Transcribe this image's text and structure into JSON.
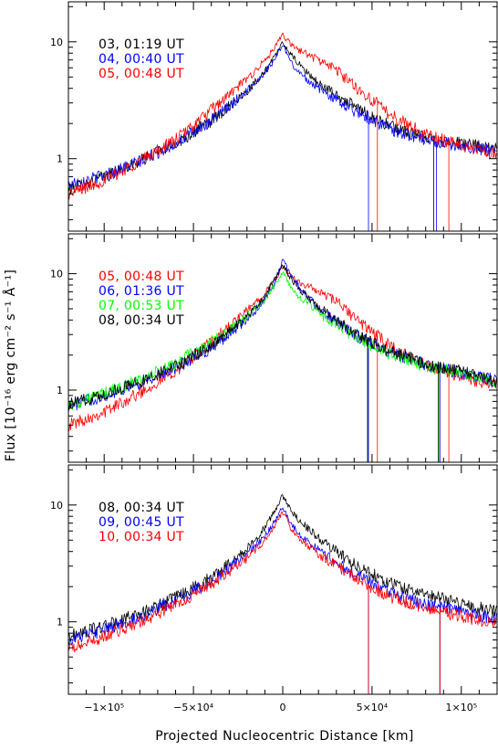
{
  "figure": {
    "ylabel_text": "Flux [10⁻¹⁶ erg cm⁻² s⁻¹ Å⁻¹]",
    "xlabel": "Projected Nucleocentric Distance [km]"
  },
  "chart_data": [
    {
      "type": "line",
      "yscale": "log",
      "xlim": [
        -120000,
        120000
      ],
      "ylim": [
        0.24,
        22
      ],
      "ytick_labels": [
        {
          "value": 1,
          "label": "1"
        },
        {
          "value": 10,
          "label": "10"
        }
      ],
      "legend": {
        "position": "top-left"
      },
      "series": [
        {
          "name": "03, 01:19 UT",
          "color": "#000000",
          "x": [
            -120000,
            -100000,
            -80000,
            -60000,
            -40000,
            -20000,
            -10000,
            -5000,
            0,
            5000,
            10000,
            20000,
            40000,
            60000,
            80000,
            100000,
            120000
          ],
          "y": [
            0.55,
            0.7,
            0.95,
            1.35,
            2.1,
            3.8,
            5.6,
            7.2,
            9.8,
            7.6,
            6.2,
            4.4,
            2.8,
            1.9,
            1.5,
            1.35,
            1.2
          ],
          "dips": [
            84500
          ]
        },
        {
          "name": "04, 00:40 UT",
          "color": "#0000ff",
          "x": [
            -120000,
            -100000,
            -80000,
            -60000,
            -40000,
            -20000,
            -10000,
            -5000,
            0,
            5000,
            10000,
            20000,
            40000,
            60000,
            80000,
            100000,
            120000
          ],
          "y": [
            0.6,
            0.72,
            0.95,
            1.35,
            2.1,
            3.8,
            5.5,
            6.9,
            9.5,
            6.5,
            5.3,
            4.0,
            2.6,
            1.8,
            1.45,
            1.3,
            1.15
          ],
          "dips": [
            48000,
            86000
          ]
        },
        {
          "name": "05, 00:48 UT",
          "color": "#ff0000",
          "x": [
            -120000,
            -100000,
            -80000,
            -60000,
            -40000,
            -20000,
            -10000,
            -5000,
            0,
            5000,
            10000,
            20000,
            30000,
            40000,
            60000,
            80000,
            100000,
            120000
          ],
          "y": [
            0.5,
            0.65,
            0.95,
            1.45,
            2.6,
            4.8,
            6.9,
            8.6,
            11.5,
            9.3,
            8.4,
            7.0,
            5.8,
            4.2,
            2.4,
            1.6,
            1.3,
            1.1
          ],
          "dips": [
            53000,
            93000
          ]
        }
      ]
    },
    {
      "type": "line",
      "yscale": "log",
      "xlim": [
        -120000,
        120000
      ],
      "ylim": [
        0.24,
        22
      ],
      "ytick_labels": [
        {
          "value": 1,
          "label": "1"
        },
        {
          "value": 10,
          "label": "10"
        }
      ],
      "legend": {
        "position": "top-left"
      },
      "series": [
        {
          "name": "05, 00:48 UT",
          "color": "#ff0000",
          "x": [
            -120000,
            -100000,
            -80000,
            -60000,
            -40000,
            -20000,
            -10000,
            -5000,
            0,
            5000,
            10000,
            20000,
            30000,
            40000,
            60000,
            80000,
            100000,
            120000
          ],
          "y": [
            0.5,
            0.65,
            0.95,
            1.45,
            2.6,
            4.8,
            6.9,
            8.6,
            11.5,
            9.3,
            8.4,
            7.0,
            5.8,
            4.2,
            2.4,
            1.6,
            1.3,
            1.1
          ],
          "dips": [
            53000,
            93000
          ]
        },
        {
          "name": "06, 01:36 UT",
          "color": "#0000ff",
          "x": [
            -120000,
            -100000,
            -80000,
            -60000,
            -40000,
            -20000,
            -10000,
            -5000,
            0,
            5000,
            10000,
            20000,
            40000,
            60000,
            80000,
            100000,
            120000
          ],
          "y": [
            0.72,
            0.9,
            1.15,
            1.55,
            2.3,
            4.0,
            6.0,
            8.0,
            13.0,
            9.5,
            7.5,
            5.0,
            3.0,
            2.1,
            1.65,
            1.4,
            1.2
          ],
          "dips": [
            48000,
            88000
          ]
        },
        {
          "name": "07, 00:53 UT",
          "color": "#00ff00",
          "x": [
            -120000,
            -100000,
            -80000,
            -60000,
            -40000,
            -20000,
            -10000,
            -5000,
            0,
            5000,
            10000,
            20000,
            40000,
            60000,
            80000,
            100000,
            120000
          ],
          "y": [
            0.74,
            0.93,
            1.22,
            1.7,
            2.6,
            4.3,
            6.0,
            7.8,
            10.2,
            7.5,
            6.2,
            4.6,
            2.9,
            2.05,
            1.62,
            1.38,
            1.18
          ],
          "dips": [
            47500,
            87500
          ]
        },
        {
          "name": "08, 00:34 UT",
          "color": "#000000",
          "x": [
            -120000,
            -100000,
            -80000,
            -60000,
            -40000,
            -20000,
            -10000,
            -5000,
            0,
            5000,
            10000,
            20000,
            40000,
            60000,
            80000,
            100000,
            120000
          ],
          "y": [
            0.75,
            0.92,
            1.18,
            1.6,
            2.4,
            4.2,
            6.4,
            8.6,
            12.0,
            8.8,
            7.2,
            5.2,
            3.1,
            2.15,
            1.7,
            1.45,
            1.2
          ],
          "dips": [
            47500,
            87000
          ]
        }
      ]
    },
    {
      "type": "line",
      "yscale": "log",
      "xlim": [
        -120000,
        120000
      ],
      "ylim": [
        0.24,
        22
      ],
      "xtick_labels": [
        {
          "value": -100000,
          "label": "−1×10⁵"
        },
        {
          "value": -50000,
          "label": "−5×10⁴"
        },
        {
          "value": 0,
          "label": "0"
        },
        {
          "value": 50000,
          "label": "5×10⁴"
        },
        {
          "value": 100000,
          "label": "1×10⁵"
        }
      ],
      "ytick_labels": [
        {
          "value": 1,
          "label": "1"
        },
        {
          "value": 10,
          "label": "10"
        }
      ],
      "legend": {
        "position": "top-left"
      },
      "series": [
        {
          "name": "08, 00:34 UT",
          "color": "#000000",
          "x": [
            -120000,
            -100000,
            -80000,
            -60000,
            -40000,
            -20000,
            -10000,
            -5000,
            0,
            5000,
            10000,
            20000,
            40000,
            60000,
            80000,
            100000,
            120000
          ],
          "y": [
            0.75,
            0.92,
            1.18,
            1.6,
            2.4,
            4.2,
            6.4,
            8.6,
            12.0,
            8.8,
            7.2,
            5.2,
            3.1,
            2.15,
            1.7,
            1.45,
            1.2
          ],
          "dips": [
            48000,
            88000
          ]
        },
        {
          "name": "09, 00:45 UT",
          "color": "#0000ff",
          "x": [
            -120000,
            -100000,
            -80000,
            -60000,
            -40000,
            -20000,
            -10000,
            -5000,
            0,
            5000,
            10000,
            20000,
            40000,
            60000,
            80000,
            100000,
            120000
          ],
          "y": [
            0.7,
            0.85,
            1.1,
            1.5,
            2.2,
            3.8,
            5.4,
            7.0,
            9.6,
            6.8,
            5.5,
            4.1,
            2.6,
            1.8,
            1.4,
            1.22,
            1.05
          ],
          "dips": [
            48000,
            88000
          ]
        },
        {
          "name": "10, 00:34 UT",
          "color": "#ff0000",
          "x": [
            -120000,
            -100000,
            -80000,
            -60000,
            -40000,
            -20000,
            -10000,
            -5000,
            0,
            5000,
            10000,
            20000,
            40000,
            60000,
            80000,
            100000,
            120000
          ],
          "y": [
            0.58,
            0.75,
            1.0,
            1.4,
            2.1,
            3.5,
            5.0,
            6.5,
            8.7,
            6.2,
            5.1,
            3.8,
            2.4,
            1.65,
            1.3,
            1.12,
            0.95
          ],
          "dips": [
            48000,
            88000
          ]
        }
      ]
    }
  ]
}
